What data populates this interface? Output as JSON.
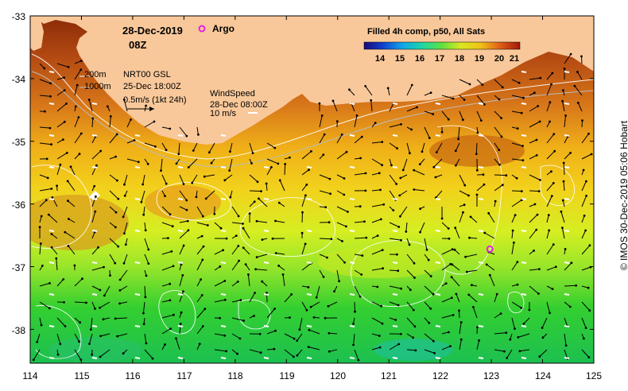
{
  "date_label": "28-Dec-2019",
  "time_label": "08Z",
  "argo_label": "Argo",
  "colorbar": {
    "title": "Filled 4h comp, p50, All Sats",
    "ticks": [
      "14",
      "15",
      "16",
      "17",
      "18",
      "19",
      "20",
      "21"
    ]
  },
  "depth_legend": {
    "label_200": "200m",
    "label_1000": "1000m"
  },
  "current_legend": {
    "source": "NRT00 GSL",
    "time": "25-Dec 18:00Z",
    "scale": "0.5m/s (1kt 24h)"
  },
  "wind_legend": {
    "title": "WindSpeed",
    "time": "28-Dec 08:00Z",
    "scale": "10 m/s"
  },
  "axes": {
    "y_ticks": [
      "-33",
      "-34",
      "-35",
      "-36",
      "-37",
      "-38"
    ],
    "x_ticks": [
      "114",
      "115",
      "116",
      "117",
      "118",
      "119",
      "120",
      "121",
      "122",
      "123",
      "124",
      "125"
    ]
  },
  "credit": "© IMOS 30-Dec-2019 05:06 Hobart",
  "argo_float": {
    "lon": 122.97,
    "lat": -36.72
  },
  "colors": {
    "land": "#f9c89a",
    "argo": "#e81ee8"
  }
}
